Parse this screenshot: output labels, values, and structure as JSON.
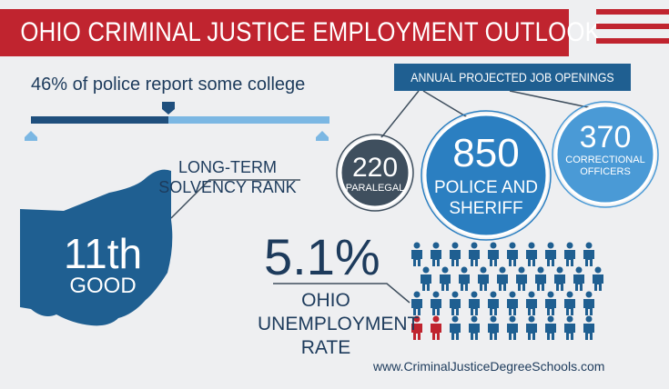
{
  "header": {
    "title": "OHIO CRIMINAL JUSTICE EMPLOYMENT OUTLOOK"
  },
  "college": {
    "text": "46% of police report some college",
    "percent": 46
  },
  "openings": {
    "label": "ANNUAL PROJECTED JOB OPENINGS",
    "paralegal": {
      "value": "220",
      "label": "PARALEGAL"
    },
    "police": {
      "value": "850",
      "label_line1": "POLICE AND",
      "label_line2": "SHERIFF"
    },
    "correctional": {
      "value": "370",
      "label_line1": "CORRECTIONAL",
      "label_line2": "OFFICERS"
    }
  },
  "solvency": {
    "label_line1": "LONG-TERM",
    "label_line2": "SOLVENCY RANK",
    "rank": "11th",
    "rating": "GOOD"
  },
  "unemployment": {
    "value": "5.1%",
    "label_line1": "OHIO",
    "label_line2": "UNEMPLOYMENT",
    "label_line3": "RATE",
    "figures_total": 40,
    "figures_highlighted": 2
  },
  "footer": {
    "url": "www.CriminalJusticeDegreeSchools.com"
  },
  "colors": {
    "red": "#c0242f",
    "navy": "#1f5f91",
    "blue": "#2b7fc1",
    "light_blue": "#7bb7e3",
    "dark_slate": "#3f4f5e",
    "text": "#1d3b5c",
    "background": "#eeeff1"
  }
}
